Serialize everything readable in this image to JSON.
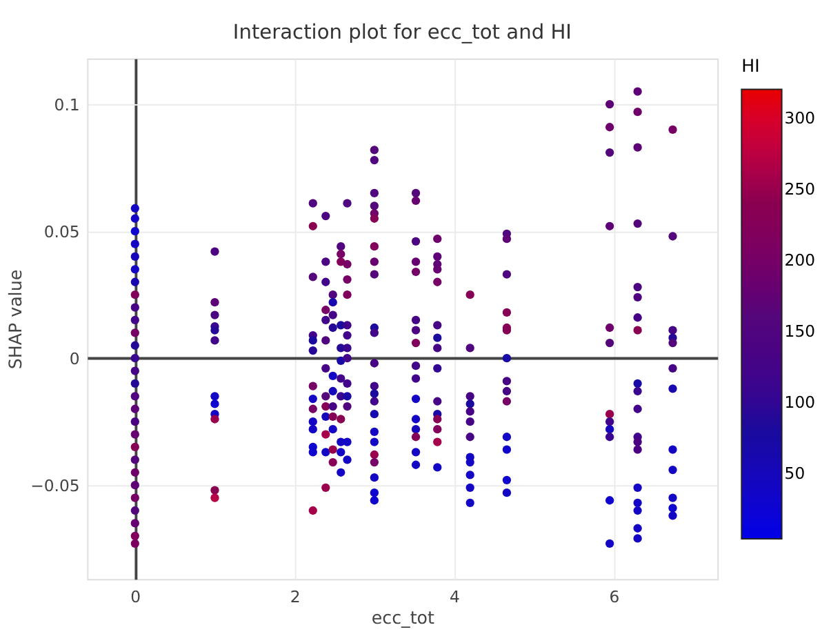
{
  "chart_data": {
    "type": "scatter",
    "title": "Interaction plot for ecc_tot and HI",
    "xlabel": "ecc_tot",
    "ylabel": "SHAP value",
    "clabel": "HI",
    "xlim": [
      -0.6,
      7.3
    ],
    "ylim": [
      -0.087,
      0.118
    ],
    "xticks": [
      0,
      2,
      4,
      6
    ],
    "yticks": [
      {
        "value": -0.05,
        "label": "−0.05"
      },
      0,
      0.05,
      0.1
    ],
    "clim": [
      4,
      320
    ],
    "cticks": [
      50,
      100,
      150,
      200,
      250,
      300
    ],
    "grid": true,
    "marker": "circle",
    "x": [
      0,
      0,
      0,
      0,
      0,
      0,
      0,
      0,
      0,
      0,
      0,
      0,
      0,
      0,
      0,
      0,
      0,
      0,
      0,
      0,
      0,
      0,
      0,
      0,
      0,
      0,
      0,
      0,
      1,
      1,
      1,
      1,
      1,
      1,
      1,
      1,
      1,
      1,
      1,
      1,
      2.23,
      2.23,
      2.23,
      2.23,
      2.23,
      2.23,
      2.23,
      2.23,
      2.23,
      2.23,
      2.23,
      2.23,
      2.23,
      2.23,
      2.39,
      2.39,
      2.39,
      2.39,
      2.39,
      2.39,
      2.39,
      2.39,
      2.39,
      2.39,
      2.39,
      2.39,
      2.39,
      2.48,
      2.48,
      2.48,
      2.48,
      2.48,
      2.48,
      2.48,
      2.48,
      2.48,
      2.48,
      2.48,
      2.58,
      2.58,
      2.58,
      2.58,
      2.58,
      2.58,
      2.58,
      2.58,
      2.58,
      2.58,
      2.58,
      2.58,
      2.66,
      2.66,
      2.66,
      2.66,
      2.66,
      2.66,
      2.66,
      2.66,
      2.66,
      2.66,
      2.66,
      2.66,
      2.66,
      3,
      3,
      3,
      3,
      3,
      3,
      3,
      3,
      3,
      3,
      3,
      3,
      3,
      3,
      3,
      3,
      3,
      3,
      3,
      3,
      3,
      3,
      3,
      3.52,
      3.52,
      3.52,
      3.52,
      3.52,
      3.52,
      3.52,
      3.52,
      3.52,
      3.52,
      3.52,
      3.52,
      3.52,
      3.52,
      3.52,
      3.52,
      3.79,
      3.79,
      3.79,
      3.79,
      3.79,
      3.79,
      3.79,
      3.79,
      3.79,
      3.79,
      3.79,
      3.79,
      3.79,
      3.79,
      3.79,
      4.2,
      4.2,
      4.2,
      4.2,
      4.2,
      4.2,
      4.2,
      4.2,
      4.2,
      4.2,
      4.2,
      4.2,
      4.66,
      4.66,
      4.66,
      4.66,
      4.66,
      4.66,
      4.66,
      4.66,
      4.66,
      4.66,
      4.66,
      4.66,
      4.66,
      4.66,
      5.95,
      5.95,
      5.95,
      5.95,
      5.95,
      5.95,
      5.95,
      5.95,
      5.95,
      5.95,
      5.95,
      5.95,
      6.3,
      6.3,
      6.3,
      6.3,
      6.3,
      6.3,
      6.3,
      6.3,
      6.3,
      6.3,
      6.3,
      6.3,
      6.3,
      6.3,
      6.3,
      6.3,
      6.3,
      6.3,
      6.3,
      6.74,
      6.74,
      6.74,
      6.74,
      6.74,
      6.74,
      6.74,
      6.74,
      6.74,
      6.74,
      6.74,
      6.74
    ],
    "values": [
      0.059,
      0.055,
      0.05,
      0.045,
      0.04,
      0.035,
      0.03,
      0.025,
      0.02,
      0.015,
      0.01,
      0.005,
      0,
      -0.005,
      -0.01,
      -0.015,
      -0.02,
      -0.025,
      -0.03,
      -0.035,
      -0.04,
      -0.045,
      -0.05,
      -0.055,
      -0.06,
      -0.065,
      -0.07,
      -0.073,
      0.042,
      0.022,
      0.017,
      0.0125,
      0.011,
      0.007,
      -0.015,
      -0.018,
      -0.022,
      -0.024,
      -0.052,
      -0.055,
      0.061,
      0.052,
      0.032,
      0.009,
      0.007,
      0.003,
      -0.011,
      -0.016,
      -0.02,
      -0.025,
      -0.028,
      -0.035,
      -0.037,
      -0.06,
      0.056,
      0.038,
      0.03,
      0.019,
      0.015,
      0.007,
      -0.004,
      -0.015,
      -0.019,
      -0.023,
      -0.03,
      -0.037,
      -0.051,
      0.025,
      0.022,
      0.017,
      0.012,
      -0.007,
      -0.013,
      -0.019,
      -0.023,
      -0.028,
      -0.036,
      -0.041,
      0.044,
      0.041,
      0.038,
      0.013,
      0.004,
      -0.001,
      -0.008,
      -0.015,
      -0.024,
      -0.033,
      -0.037,
      -0.045,
      0.061,
      0.037,
      0.031,
      0.025,
      0.013,
      0.009,
      0.004,
      0,
      -0.01,
      -0.015,
      -0.019,
      -0.033,
      -0.04,
      0.082,
      0.078,
      0.065,
      0.06,
      0.057,
      0.055,
      0.044,
      0.038,
      0.033,
      0.012,
      0.01,
      -0.002,
      -0.011,
      -0.014,
      -0.017,
      -0.022,
      -0.029,
      -0.033,
      -0.038,
      -0.041,
      -0.047,
      -0.053,
      -0.056,
      0.065,
      0.062,
      0.046,
      0.038,
      0.034,
      0.015,
      0.011,
      0.006,
      -0.003,
      -0.008,
      -0.016,
      -0.024,
      -0.028,
      -0.031,
      -0.037,
      -0.042,
      0.047,
      0.04,
      0.037,
      0.035,
      0.03,
      0.013,
      0.008,
      0.004,
      -0.004,
      -0.017,
      -0.022,
      -0.024,
      -0.028,
      -0.033,
      -0.043,
      0.025,
      0.004,
      -0.015,
      -0.018,
      -0.021,
      -0.025,
      -0.031,
      -0.039,
      -0.041,
      -0.046,
      -0.051,
      -0.057,
      0.049,
      0.047,
      0.033,
      0.018,
      0.012,
      0.011,
      0,
      -0.009,
      -0.013,
      -0.017,
      -0.031,
      -0.036,
      -0.048,
      -0.053,
      0.1,
      0.091,
      0.081,
      0.052,
      0.012,
      0.006,
      -0.022,
      -0.025,
      -0.028,
      -0.031,
      -0.056,
      -0.073,
      0.105,
      0.097,
      0.083,
      0.053,
      0.028,
      0.024,
      0.016,
      0.011,
      -0.01,
      -0.013,
      -0.02,
      -0.031,
      -0.033,
      -0.036,
      -0.051,
      -0.057,
      -0.06,
      -0.067,
      -0.071,
      0.09,
      0.048,
      0.011,
      0.008,
      0.006,
      -0.004,
      -0.012,
      -0.036,
      -0.044,
      -0.055,
      -0.059,
      -0.062
    ],
    "cvalues": [
      40,
      40,
      30,
      40,
      50,
      40,
      60,
      220,
      130,
      120,
      200,
      90,
      110,
      130,
      90,
      150,
      170,
      140,
      180,
      230,
      160,
      190,
      170,
      200,
      160,
      180,
      220,
      210,
      140,
      170,
      140,
      110,
      90,
      120,
      40,
      30,
      40,
      250,
      240,
      270,
      150,
      240,
      160,
      120,
      80,
      90,
      200,
      40,
      200,
      40,
      40,
      30,
      30,
      260,
      140,
      140,
      120,
      200,
      120,
      150,
      130,
      160,
      230,
      50,
      260,
      40,
      250,
      150,
      60,
      130,
      90,
      40,
      50,
      130,
      230,
      40,
      250,
      230,
      150,
      200,
      220,
      80,
      90,
      70,
      120,
      110,
      240,
      40,
      40,
      40,
      150,
      200,
      200,
      220,
      120,
      120,
      110,
      120,
      120,
      70,
      150,
      40,
      40,
      160,
      150,
      150,
      160,
      190,
      230,
      220,
      180,
      160,
      80,
      120,
      130,
      120,
      80,
      120,
      60,
      40,
      40,
      250,
      200,
      40,
      30,
      30,
      160,
      180,
      140,
      180,
      200,
      130,
      140,
      220,
      120,
      120,
      40,
      40,
      50,
      230,
      40,
      40,
      190,
      170,
      170,
      180,
      200,
      130,
      80,
      130,
      100,
      130,
      70,
      230,
      220,
      260,
      40,
      230,
      150,
      130,
      80,
      130,
      130,
      130,
      40,
      40,
      40,
      40,
      40,
      150,
      170,
      150,
      230,
      230,
      230,
      70,
      130,
      130,
      200,
      40,
      30,
      30,
      40,
      170,
      190,
      160,
      170,
      190,
      160,
      250,
      120,
      50,
      110,
      30,
      40,
      170,
      190,
      170,
      160,
      140,
      150,
      130,
      240,
      70,
      110,
      120,
      120,
      140,
      140,
      40,
      40,
      40,
      40,
      40,
      200,
      160,
      130,
      90,
      160,
      130,
      60,
      40,
      40,
      40,
      30,
      40
    ]
  }
}
